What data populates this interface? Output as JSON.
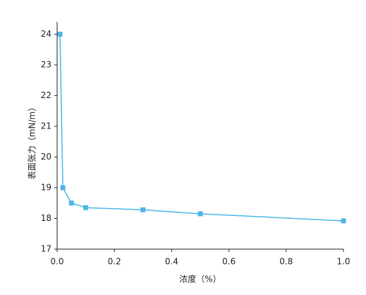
{
  "chart_data": {
    "type": "line",
    "x_label": "浓度（%）",
    "y_label": "表面张力（mN/m）",
    "x": [
      0.01,
      0.02,
      0.05,
      0.1,
      0.3,
      0.5,
      1.0
    ],
    "series": [
      {
        "color": "#4cb6ea",
        "values": [
          24,
          19,
          18.5,
          18.35,
          18.28,
          18.15,
          17.92
        ]
      }
    ],
    "xlim": [
      0,
      1.0
    ],
    "ylim": [
      17,
      24.4
    ],
    "xticks": [
      {
        "value": 0,
        "label": "0.0"
      },
      0.2,
      0.4,
      0.6,
      0.8,
      {
        "value": 1,
        "label": "1.0"
      }
    ],
    "yticks": [
      17,
      18,
      19,
      20,
      21,
      22,
      23,
      24
    ]
  }
}
